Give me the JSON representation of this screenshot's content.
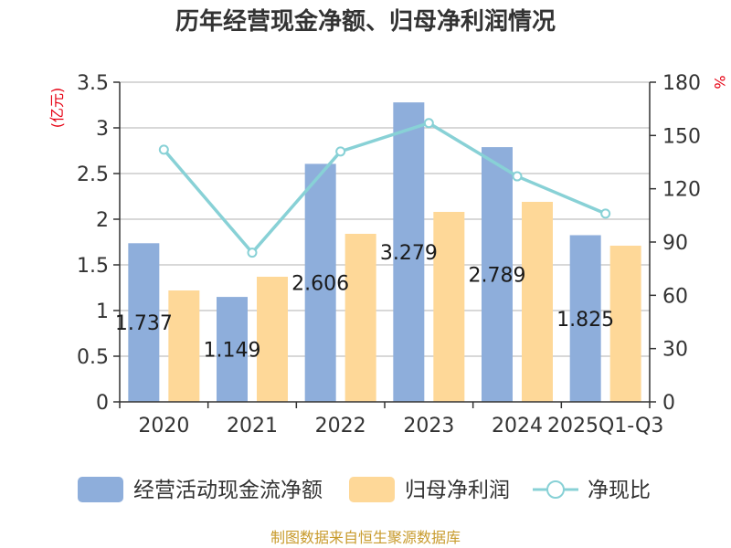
{
  "title": "历年经营现金净额、归母净利润情况",
  "source": "制图数据来自恒生聚源数据库",
  "colors": {
    "cashflow": "#8eaedb",
    "netprofit": "#fed898",
    "ratio": "#88d1d6",
    "axis": "#333333",
    "grid": "#cccccc",
    "unit": "#e60012",
    "source": "#c89b2d"
  },
  "chart_data": {
    "type": "bar",
    "title": "历年经营现金净额、归母净利润情况",
    "categories": [
      "2020",
      "2021",
      "2022",
      "2023",
      "2024",
      "2025Q1-Q3"
    ],
    "y_left": {
      "unit": "亿元",
      "range": [
        0,
        3.5
      ],
      "ticks": [
        "0",
        "0.5",
        "1",
        "1.5",
        "2",
        "2.5",
        "3",
        "3.5"
      ]
    },
    "y_right": {
      "unit": "%",
      "range": [
        0,
        180
      ],
      "ticks": [
        "0",
        "30",
        "60",
        "90",
        "120",
        "150",
        "180"
      ]
    },
    "series": [
      {
        "name": "经营活动现金流净额",
        "type": "bar",
        "axis": "left",
        "values": [
          1.737,
          1.149,
          2.606,
          3.279,
          2.789,
          1.825
        ],
        "labels": [
          "1.737",
          "1.149",
          "2.606",
          "3.279",
          "2.789",
          "1.825"
        ]
      },
      {
        "name": "归母净利润",
        "type": "bar",
        "axis": "left",
        "values": [
          1.22,
          1.37,
          1.84,
          2.08,
          2.19,
          1.71
        ]
      },
      {
        "name": "净现比",
        "type": "line",
        "axis": "right",
        "values": [
          142,
          84,
          141,
          157,
          127,
          106
        ]
      }
    ],
    "grid": true,
    "legend_position": "bottom"
  }
}
